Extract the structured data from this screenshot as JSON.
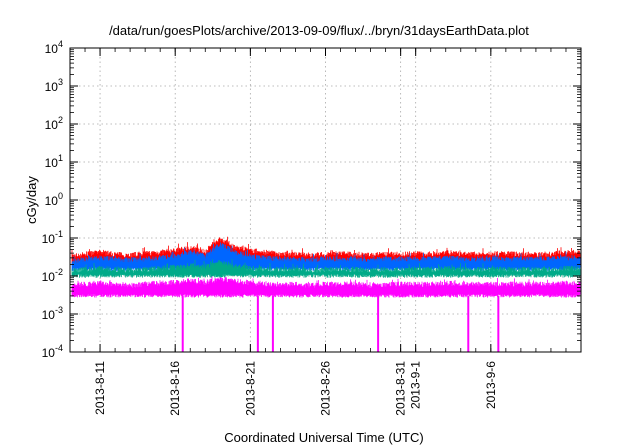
{
  "chart_data": {
    "type": "line",
    "title": "/data/run/goesPlots/archive/2013-09-09/flux/../bryn/31daysEarthData.plot",
    "xlabel": "Coordinated Universal Time (UTC)",
    "ylabel": "cGy/day",
    "y_scale": "log",
    "ylim": [
      0.0001,
      10000
    ],
    "y_ticks": [
      {
        "base": "10",
        "exp": "-4"
      },
      {
        "base": "10",
        "exp": "-3"
      },
      {
        "base": "10",
        "exp": "-2"
      },
      {
        "base": "10",
        "exp": "-1"
      },
      {
        "base": "10",
        "exp": "0"
      },
      {
        "base": "10",
        "exp": "1"
      },
      {
        "base": "10",
        "exp": "2"
      },
      {
        "base": "10",
        "exp": "3"
      },
      {
        "base": "10",
        "exp": "4"
      }
    ],
    "xlim": [
      "2013-08-09",
      "2013-09-12"
    ],
    "x_ticks": [
      "2013-8-11",
      "2013-8-16",
      "2013-8-21",
      "2013-8-26",
      "2013-8-31",
      "2013-9-1",
      "2013-9-6"
    ],
    "grid": true,
    "legend": "none",
    "series": [
      {
        "color": "#ff0000",
        "typical_range": [
          0.02,
          0.05
        ],
        "values": [
          0.035,
          0.04,
          0.045,
          0.04,
          0.038,
          0.042,
          0.045,
          0.05,
          0.06,
          0.045,
          0.1,
          0.06,
          0.05,
          0.045,
          0.04,
          0.04,
          0.038,
          0.04,
          0.042,
          0.04,
          0.038,
          0.04,
          0.04,
          0.042,
          0.04,
          0.045,
          0.04,
          0.04,
          0.04,
          0.042,
          0.04,
          0.04,
          0.04,
          0.045
        ]
      },
      {
        "color": "#0066ff",
        "typical_range": [
          0.015,
          0.04
        ],
        "values": [
          0.025,
          0.03,
          0.032,
          0.03,
          0.028,
          0.03,
          0.032,
          0.035,
          0.045,
          0.035,
          0.07,
          0.045,
          0.035,
          0.032,
          0.03,
          0.03,
          0.028,
          0.03,
          0.03,
          0.03,
          0.028,
          0.03,
          0.03,
          0.03,
          0.03,
          0.032,
          0.03,
          0.03,
          0.03,
          0.03,
          0.03,
          0.03,
          0.03,
          0.032
        ]
      },
      {
        "color": "#00aa88",
        "typical_range": [
          0.01,
          0.02
        ],
        "values": [
          0.015,
          0.016,
          0.017,
          0.016,
          0.015,
          0.016,
          0.017,
          0.018,
          0.02,
          0.018,
          0.025,
          0.02,
          0.017,
          0.016,
          0.016,
          0.016,
          0.015,
          0.016,
          0.016,
          0.016,
          0.015,
          0.016,
          0.016,
          0.016,
          0.016,
          0.017,
          0.016,
          0.016,
          0.016,
          0.016,
          0.016,
          0.016,
          0.016,
          0.017
        ]
      },
      {
        "color": "#ff00ff",
        "typical_range": [
          0.003,
          0.01
        ],
        "dropouts": [
          "2013-08-16",
          "2013-08-21",
          "2013-08-22",
          "2013-08-29",
          "2013-09-04",
          "2013-09-06"
        ],
        "values": [
          0.006,
          0.0065,
          0.007,
          0.0065,
          0.006,
          0.0065,
          0.007,
          0.0072,
          0.008,
          0.0072,
          0.009,
          0.008,
          0.007,
          0.0065,
          0.0065,
          0.0065,
          0.006,
          0.0065,
          0.0065,
          0.0065,
          0.006,
          0.0065,
          0.0065,
          0.0065,
          0.0065,
          0.007,
          0.0065,
          0.0065,
          0.0065,
          0.0065,
          0.0065,
          0.0065,
          0.0065,
          0.007
        ]
      }
    ]
  }
}
